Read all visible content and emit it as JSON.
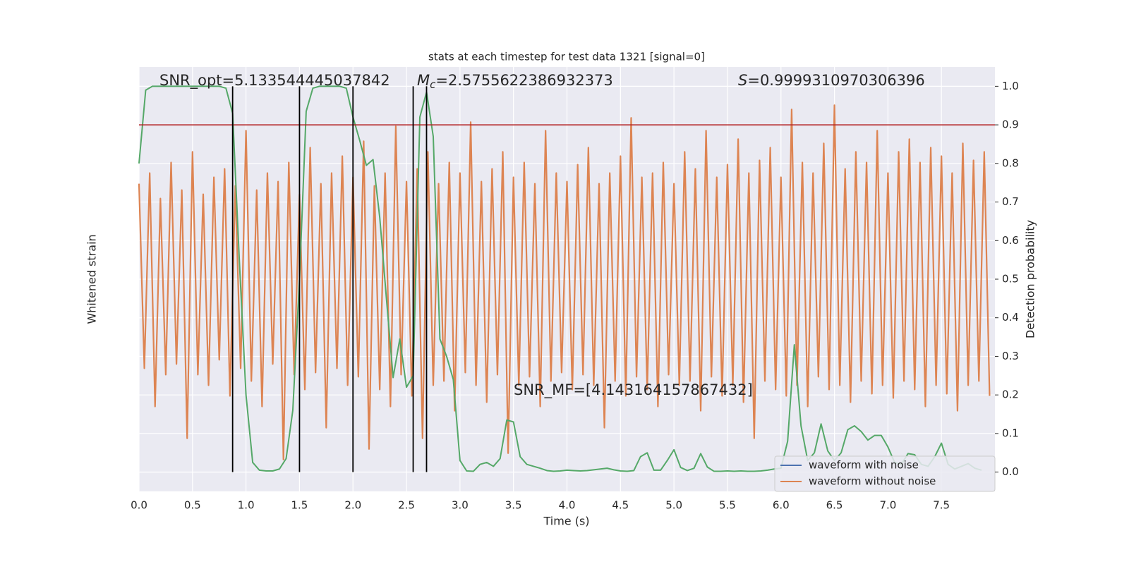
{
  "chart_data": {
    "type": "line",
    "title": "stats at each timestep for test data 1321 [signal=0]",
    "xlabel": "Time (s)",
    "ylabel": "Whitened strain",
    "y2label": "Detection probability",
    "annotations": {
      "snr_opt": "SNR_opt=5.133544445037842",
      "mc": {
        "symbol": "M",
        "sub": "c",
        "text": "=2.5755622386932373"
      },
      "s": {
        "symbol": "S",
        "text": "=0.9999310970306396"
      },
      "snr_mf": "SNR_MF=[4.143164157867432]"
    },
    "xlim": [
      0,
      8.0
    ],
    "xticks": [
      {
        "value": 0,
        "label": "0.0"
      },
      0.5,
      {
        "value": 1,
        "label": "1.0"
      },
      1.5,
      {
        "value": 2,
        "label": "2.0"
      },
      2.5,
      {
        "value": 3,
        "label": "3.0"
      },
      3.5,
      {
        "value": 4,
        "label": "4.0"
      },
      4.5,
      {
        "value": 5,
        "label": "5.0"
      },
      5.5,
      {
        "value": 6,
        "label": "6.0"
      },
      6.5,
      {
        "value": 7,
        "label": "7.0"
      },
      7.5
    ],
    "ylim": [
      -1,
      1
    ],
    "y2lim": [
      -0.05,
      1.05
    ],
    "y2ticks": [
      {
        "value": 0,
        "label": "0.0"
      },
      0.1,
      0.2,
      0.3,
      0.4,
      0.5,
      0.6,
      0.7,
      0.8,
      0.9,
      {
        "value": 1,
        "label": "1.0"
      }
    ],
    "grid": true,
    "legend_position": "lower right",
    "legend": [
      {
        "name": "waveform with noise",
        "color": "#4c72b0"
      },
      {
        "name": "waveform without noise",
        "color": "#dd8452"
      }
    ],
    "series": [
      {
        "name": "waveform without noise",
        "color": "#dd8452",
        "x": [
          0,
          0.05,
          0.1,
          0.15,
          0.2,
          0.25,
          0.3,
          0.35,
          0.4,
          0.45,
          0.5,
          0.55,
          0.6,
          0.65,
          0.7,
          0.75,
          0.8,
          0.85,
          0.9,
          0.95,
          1,
          1.05,
          1.1,
          1.15,
          1.2,
          1.25,
          1.3,
          1.35,
          1.4,
          1.45,
          1.5,
          1.55,
          1.6,
          1.65,
          1.7,
          1.75,
          1.8,
          1.85,
          1.9,
          1.95,
          2,
          2.05,
          2.1,
          2.15,
          2.2,
          2.25,
          2.3,
          2.35,
          2.4,
          2.45,
          2.5,
          2.55,
          2.6,
          2.65,
          2.7,
          2.75,
          2.8,
          2.85,
          2.9,
          2.95,
          3,
          3.05,
          3.1,
          3.15,
          3.2,
          3.25,
          3.3,
          3.35,
          3.4,
          3.45,
          3.5,
          3.55,
          3.6,
          3.65,
          3.7,
          3.75,
          3.8,
          3.85,
          3.9,
          3.95,
          4,
          4.05,
          4.1,
          4.15,
          4.2,
          4.25,
          4.3,
          4.35,
          4.4,
          4.45,
          4.5,
          4.55,
          4.6,
          4.65,
          4.7,
          4.75,
          4.8,
          4.85,
          4.9,
          4.95,
          5,
          5.05,
          5.1,
          5.15,
          5.2,
          5.25,
          5.3,
          5.35,
          5.4,
          5.45,
          5.5,
          5.55,
          5.6,
          5.65,
          5.7,
          5.75,
          5.8,
          5.85,
          5.9,
          5.95,
          6,
          6.05,
          6.1,
          6.15,
          6.2,
          6.25,
          6.3,
          6.35,
          6.4,
          6.45,
          6.5,
          6.55,
          6.6,
          6.65,
          6.7,
          6.75,
          6.8,
          6.85,
          6.9,
          6.95,
          7,
          7.05,
          7.1,
          7.15,
          7.2,
          7.25,
          7.3,
          7.35,
          7.4,
          7.45,
          7.5,
          7.55,
          7.6,
          7.65,
          7.7,
          7.75,
          7.8,
          7.85,
          7.9,
          7.95
        ],
        "values": [
          0.45,
          -0.42,
          0.5,
          -0.6,
          0.38,
          -0.45,
          0.55,
          -0.4,
          0.42,
          -0.75,
          0.6,
          -0.45,
          0.4,
          -0.5,
          0.48,
          -0.38,
          0.52,
          -0.55,
          0.44,
          -0.42,
          0.7,
          -0.48,
          0.42,
          -0.6,
          0.5,
          -0.4,
          0.46,
          -0.85,
          0.55,
          -0.45,
          0.4,
          -0.52,
          0.62,
          -0.44,
          0.45,
          -0.7,
          0.5,
          -0.42,
          0.58,
          -0.5,
          0.48,
          -0.46,
          0.65,
          -0.8,
          0.44,
          -0.52,
          0.5,
          -0.6,
          0.72,
          -0.45,
          0.46,
          -0.55,
          0.52,
          -0.75,
          0.6,
          -0.5,
          0.45,
          -0.48,
          0.55,
          -0.62,
          0.5,
          -0.44,
          0.74,
          -0.5,
          0.46,
          -0.58,
          0.52,
          -0.45,
          0.6,
          -0.82,
          0.48,
          -0.5,
          0.55,
          -0.46,
          0.45,
          -0.6,
          0.7,
          -0.48,
          0.5,
          -0.44,
          0.46,
          -0.52,
          0.54,
          -0.45,
          0.62,
          -0.5,
          0.45,
          -0.7,
          0.5,
          -0.48,
          0.58,
          -0.55,
          0.76,
          -0.46,
          0.48,
          -0.52,
          0.5,
          -0.6,
          0.55,
          -0.45,
          0.45,
          -0.5,
          0.6,
          -0.48,
          0.52,
          -0.62,
          0.7,
          -0.46,
          0.48,
          -0.55,
          0.54,
          -0.5,
          0.66,
          -0.58,
          0.5,
          -0.75,
          0.56,
          -0.48,
          0.62,
          -0.52,
          0.48,
          -0.55,
          0.8,
          -0.5,
          0.55,
          -0.6,
          0.5,
          -0.46,
          0.64,
          -0.52,
          0.82,
          -0.5,
          0.52,
          -0.58,
          0.6,
          -0.48,
          0.55,
          -0.54,
          0.7,
          -0.5,
          0.5,
          -0.56,
          0.6,
          -0.48,
          0.66,
          -0.52,
          0.55,
          -0.6,
          0.62,
          -0.5,
          0.58,
          -0.54,
          0.5,
          -0.62,
          0.64,
          -0.5,
          0.56,
          -0.48,
          0.6,
          -0.55
        ]
      },
      {
        "name": "detection probability",
        "color": "#55a868",
        "axis": "y2",
        "x": [
          0,
          0.0625,
          0.125,
          0.1875,
          0.25,
          0.3125,
          0.375,
          0.4375,
          0.5,
          0.5625,
          0.625,
          0.6875,
          0.75,
          0.8125,
          0.875,
          0.9375,
          1,
          1.0625,
          1.125,
          1.1875,
          1.25,
          1.3125,
          1.375,
          1.4375,
          1.5,
          1.5625,
          1.625,
          1.6875,
          1.75,
          1.8125,
          1.875,
          1.9375,
          2,
          2.0625,
          2.125,
          2.1875,
          2.25,
          2.3125,
          2.375,
          2.4375,
          2.5,
          2.5625,
          2.625,
          2.6875,
          2.75,
          2.8125,
          2.875,
          2.9375,
          3,
          3.0625,
          3.125,
          3.1875,
          3.25,
          3.3125,
          3.375,
          3.4375,
          3.5,
          3.5625,
          3.625,
          3.6875,
          3.75,
          3.8125,
          3.875,
          3.9375,
          4,
          4.0625,
          4.125,
          4.1875,
          4.25,
          4.3125,
          4.375,
          4.4375,
          4.5,
          4.5625,
          4.625,
          4.6875,
          4.75,
          4.8125,
          4.875,
          4.9375,
          5,
          5.0625,
          5.125,
          5.1875,
          5.25,
          5.3125,
          5.375,
          5.4375,
          5.5,
          5.5625,
          5.625,
          5.6875,
          5.75,
          5.8125,
          5.875,
          5.9375,
          6,
          6.0625,
          6.125,
          6.1875,
          6.25,
          6.3125,
          6.375,
          6.4375,
          6.5,
          6.5625,
          6.625,
          6.6875,
          6.75,
          6.8125,
          6.875,
          6.9375,
          7,
          7.0625,
          7.125,
          7.1875,
          7.25,
          7.3125,
          7.375,
          7.4375,
          7.5,
          7.5625,
          7.625,
          7.6875,
          7.75,
          7.8125,
          7.875
        ],
        "values": [
          0.8,
          0.99,
          1.0,
          1.0,
          1.0,
          1.0,
          1.0,
          1.0,
          1.0,
          1.0,
          1.0,
          1.0,
          1.0,
          0.995,
          0.93,
          0.55,
          0.2,
          0.025,
          0.005,
          0.003,
          0.003,
          0.008,
          0.035,
          0.16,
          0.5,
          0.935,
          0.995,
          1.0,
          1.0,
          1.0,
          1.0,
          0.995,
          0.92,
          0.86,
          0.795,
          0.81,
          0.66,
          0.45,
          0.245,
          0.345,
          0.22,
          0.25,
          0.92,
          0.985,
          0.87,
          0.345,
          0.3,
          0.24,
          0.03,
          0.003,
          0.002,
          0.02,
          0.025,
          0.015,
          0.035,
          0.135,
          0.13,
          0.04,
          0.02,
          0.015,
          0.01,
          0.004,
          0.002,
          0.003,
          0.005,
          0.004,
          0.003,
          0.004,
          0.006,
          0.008,
          0.01,
          0.006,
          0.003,
          0.002,
          0.004,
          0.04,
          0.05,
          0.005,
          0.005,
          0.03,
          0.058,
          0.012,
          0.004,
          0.01,
          0.048,
          0.013,
          0.002,
          0.002,
          0.003,
          0.002,
          0.003,
          0.002,
          0.002,
          0.003,
          0.005,
          0.008,
          0.01,
          0.08,
          0.33,
          0.12,
          0.03,
          0.05,
          0.125,
          0.055,
          0.03,
          0.05,
          0.11,
          0.12,
          0.105,
          0.083,
          0.095,
          0.095,
          0.065,
          0.025,
          0.02,
          0.048,
          0.045,
          0.02,
          0.015,
          0.04,
          0.075,
          0.02,
          0.008,
          0.015,
          0.022,
          0.01,
          0.005
        ]
      }
    ],
    "threshold": {
      "value": 0.9,
      "color": "#b22222"
    },
    "vlines": {
      "color": "#000000",
      "x": [
        0.875,
        1.5,
        2.0,
        2.5625,
        2.6875
      ],
      "range": [
        0,
        1
      ]
    }
  }
}
